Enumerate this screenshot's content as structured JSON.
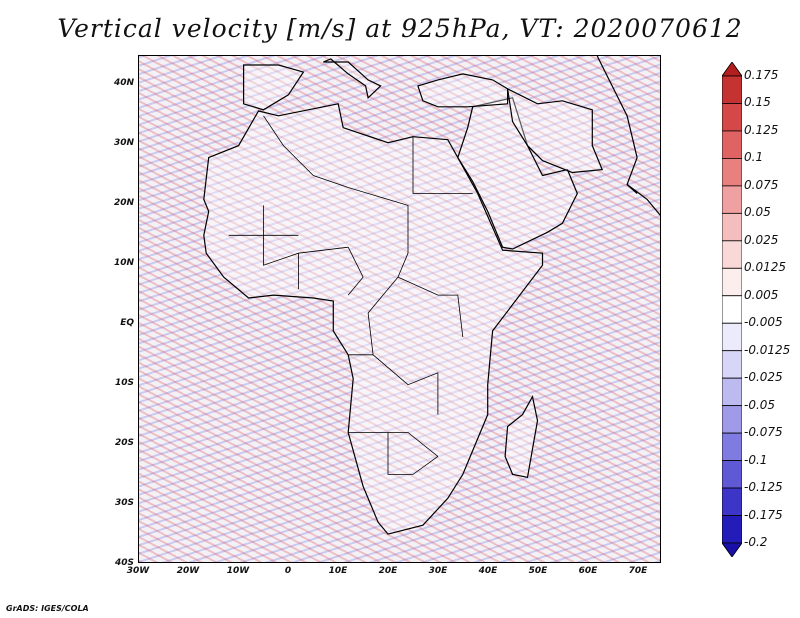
{
  "title": "Vertical velocity [m/s] at 925hPa, VT: 2020070612",
  "y_axis_labels": [
    "40N",
    "30N",
    "20N",
    "10N",
    "EQ",
    "10S",
    "20S",
    "30S",
    "40S"
  ],
  "x_axis_labels": [
    "30W",
    "20W",
    "10W",
    "0",
    "10E",
    "20E",
    "30E",
    "40E",
    "50E",
    "60E",
    "70E"
  ],
  "colorbar": {
    "labels": [
      "0.175",
      "0.15",
      "0.125",
      "0.1",
      "0.075",
      "0.05",
      "0.025",
      "0.0125",
      "0.005",
      "-0.005",
      "-0.0125",
      "-0.025",
      "-0.05",
      "-0.075",
      "-0.1",
      "-0.125",
      "-0.175",
      "-0.2"
    ],
    "colors": [
      "#b31f1f",
      "#c53232",
      "#d44848",
      "#df6363",
      "#e88080",
      "#efa0a0",
      "#f5bebe",
      "#f9d8d8",
      "#fdeeee",
      "#ffffff",
      "#ecebfb",
      "#d8d6f6",
      "#bdbaf0",
      "#9f9be8",
      "#807be0",
      "#5f59d6",
      "#3c35c8",
      "#241cb8",
      "#1a10a8"
    ]
  },
  "footer": "GrADS: IGES/COLA",
  "map": {
    "lon_range": [
      -30,
      75
    ],
    "lat_range": [
      -40,
      45
    ],
    "coastline_color": "#000000"
  }
}
